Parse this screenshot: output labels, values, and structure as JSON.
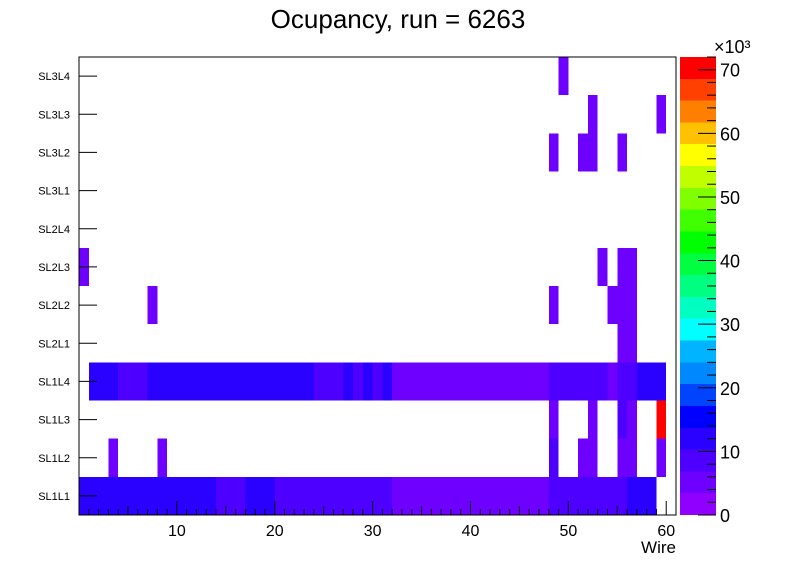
{
  "chart_data": {
    "type": "heatmap",
    "title": "Ocupancy, run = 6263",
    "xlabel": "Wire",
    "xlim": [
      0,
      61
    ],
    "x_ticks": [
      10,
      20,
      30,
      40,
      50,
      60
    ],
    "y_categories": [
      "SL1L1",
      "SL1L2",
      "SL1L3",
      "SL1L4",
      "SL2L1",
      "SL2L2",
      "SL2L3",
      "SL2L4",
      "SL3L1",
      "SL3L2",
      "SL3L3",
      "SL3L4"
    ],
    "z_label": "×10³",
    "z_range": [
      0,
      72
    ],
    "z_ticks": [
      0,
      10,
      20,
      30,
      40,
      50,
      60,
      70
    ],
    "palette": [
      "#8f00ff",
      "#6e00ff",
      "#4d00ff",
      "#2a00ff",
      "#0000ff",
      "#0044ff",
      "#0088ff",
      "#00b4ff",
      "#00ffff",
      "#00ffc0",
      "#00ff80",
      "#00ff40",
      "#00ff00",
      "#40ff00",
      "#80ff00",
      "#c0ff00",
      "#ffff00",
      "#ffc000",
      "#ff8000",
      "#ff4000",
      "#ff0000"
    ],
    "rows": [
      {
        "layer": "SL1L1",
        "segments": [
          [
            1,
            14,
            11
          ],
          [
            15,
            17,
            8
          ],
          [
            18,
            20,
            11
          ],
          [
            21,
            32,
            7
          ],
          [
            33,
            48,
            4
          ],
          [
            49,
            56,
            7
          ],
          [
            57,
            59,
            11
          ]
        ]
      },
      {
        "layer": "SL1L2",
        "segments": [
          [
            4,
            4,
            4
          ],
          [
            9,
            9,
            4
          ],
          [
            49,
            49,
            7
          ],
          [
            52,
            53,
            4
          ],
          [
            56,
            57,
            4
          ],
          [
            60,
            60,
            4
          ]
        ]
      },
      {
        "layer": "SL1L3",
        "segments": [
          [
            49,
            49,
            4
          ],
          [
            53,
            53,
            4
          ],
          [
            56,
            56,
            7
          ],
          [
            57,
            57,
            4
          ],
          [
            60,
            60,
            70
          ]
        ]
      },
      {
        "layer": "SL1L4",
        "segments": [
          [
            2,
            4,
            11
          ],
          [
            5,
            7,
            8
          ],
          [
            8,
            24,
            11
          ],
          [
            25,
            27,
            8
          ],
          [
            28,
            28,
            11
          ],
          [
            29,
            29,
            7
          ],
          [
            30,
            30,
            11
          ],
          [
            31,
            31,
            8
          ],
          [
            32,
            32,
            11
          ],
          [
            33,
            48,
            4
          ],
          [
            49,
            54,
            7
          ],
          [
            55,
            55,
            4
          ],
          [
            56,
            57,
            8
          ],
          [
            58,
            60,
            11
          ]
        ]
      },
      {
        "layer": "SL2L1",
        "segments": [
          [
            56,
            57,
            4
          ]
        ]
      },
      {
        "layer": "SL2L2",
        "segments": [
          [
            8,
            8,
            4
          ],
          [
            49,
            49,
            4
          ],
          [
            55,
            57,
            4
          ]
        ]
      },
      {
        "layer": "SL2L3",
        "segments": [
          [
            1,
            1,
            4
          ],
          [
            54,
            54,
            4
          ],
          [
            56,
            57,
            4
          ]
        ]
      },
      {
        "layer": "SL2L4",
        "segments": []
      },
      {
        "layer": "SL3L1",
        "segments": []
      },
      {
        "layer": "SL3L2",
        "segments": [
          [
            49,
            49,
            4
          ],
          [
            52,
            53,
            4
          ],
          [
            56,
            56,
            4
          ]
        ]
      },
      {
        "layer": "SL3L3",
        "segments": [
          [
            53,
            53,
            4
          ],
          [
            60,
            60,
            4
          ]
        ]
      },
      {
        "layer": "SL3L4",
        "segments": [
          [
            50,
            50,
            4
          ]
        ]
      }
    ]
  }
}
